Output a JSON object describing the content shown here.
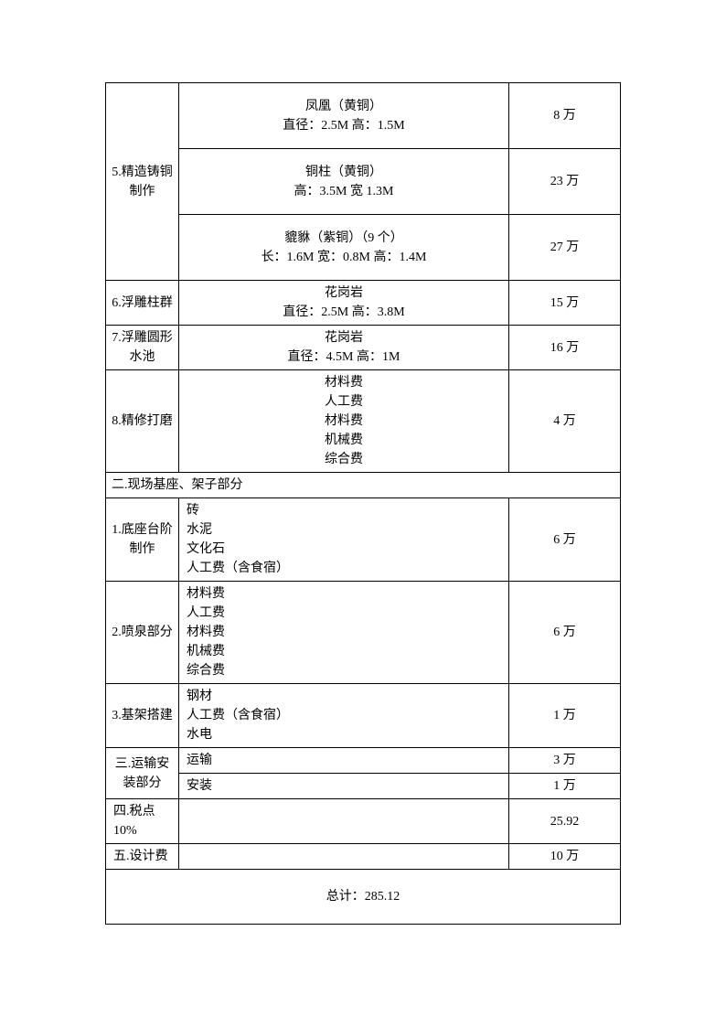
{
  "colors": {
    "background": "#ffffff",
    "text": "#000000",
    "border": "#000000"
  },
  "fonts": {
    "body_size_pt": 10.5,
    "family": "SimSun"
  },
  "rows": {
    "r5_label": "5.精造铸铜制作",
    "r5a_desc": "凤凰（黄铜）\n直径：2.5M   高：1.5M",
    "r5a_cost": "8 万",
    "r5b_desc": "铜柱（黄铜）\n高：3.5M   宽 1.3M",
    "r5b_cost": "23 万",
    "r5c_desc": "貔貅（紫铜）（9 个）\n长：1.6M   宽：0.8M     高：1.4M",
    "r5c_cost": "27 万",
    "r6_label": "6.浮雕柱群",
    "r6_desc": "花岗岩\n直径：2.5M   高：3.8M",
    "r6_cost": "15 万",
    "r7_label": "7.浮雕圆形水池",
    "r7_desc": "花岗岩\n直径：4.5M   高：1M",
    "r7_cost": "16 万",
    "r8_label": "8.精修打磨",
    "r8_desc": "材料费\n人工费\n材料费\n机械费\n综合费",
    "r8_cost": "4 万",
    "section2": "二.现场基座、架子部分",
    "s2_1_label": "1.底座台阶制作",
    "s2_1_desc": "砖\n水泥\n文化石\n人工费（含食宿）",
    "s2_1_cost": "6 万",
    "s2_2_label": "2.喷泉部分",
    "s2_2_desc": "材料费\n人工费\n材料费\n机械费\n综合费",
    "s2_2_cost": "6 万",
    "s2_3_label": "3.基架搭建",
    "s2_3_desc": "钢材\n人工费（含食宿）\n水电",
    "s2_3_cost": "1 万",
    "section3": "三.运输安装部分",
    "s3_1_desc": "运输",
    "s3_1_cost": "3 万",
    "s3_2_desc": "安装",
    "s3_2_cost": "1 万",
    "section4": "四.税点 10%",
    "s4_cost": "25.92",
    "section5": "五.设计费",
    "s5_cost": "10 万",
    "total": "总计：285.12"
  }
}
